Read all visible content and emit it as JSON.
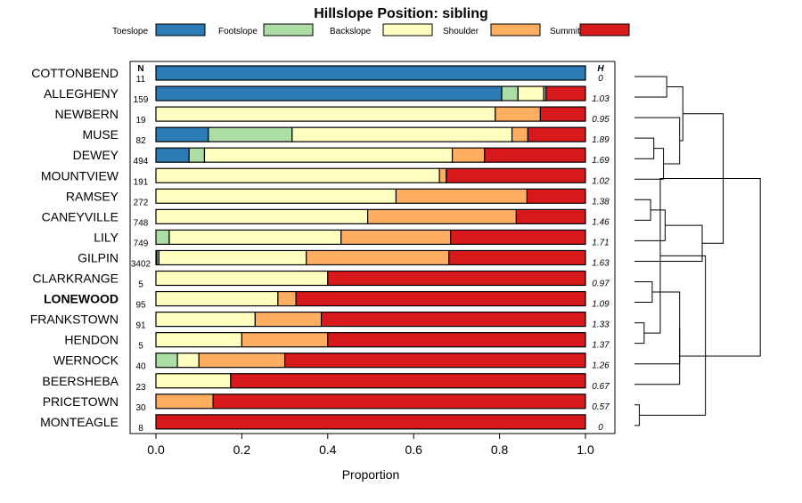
{
  "chart_data": {
    "type": "bar",
    "stacked": true,
    "orientation": "horizontal",
    "title": "Hillslope Position: sibling",
    "xlabel": "Proportion",
    "ylabel": "",
    "xlim": [
      0,
      1
    ],
    "xticks": [
      "0.0",
      "0.2",
      "0.4",
      "0.6",
      "0.8",
      "1.0"
    ],
    "xtick_values": [
      0,
      0.2,
      0.4,
      0.6,
      0.8,
      1.0
    ],
    "n_header": "N",
    "h_header": "H",
    "highlight": "LONEWOOD",
    "legend": [
      {
        "name": "Toeslope",
        "color": "#2c7bb6"
      },
      {
        "name": "Footslope",
        "color": "#abdda4"
      },
      {
        "name": "Backslope",
        "color": "#ffffbf"
      },
      {
        "name": "Shoulder",
        "color": "#fdae61"
      },
      {
        "name": "Summit",
        "color": "#d7191c"
      }
    ],
    "rows": [
      {
        "name": "COTTONBEND",
        "n": "11",
        "h": "0",
        "values": [
          1.0,
          0,
          0,
          0,
          0
        ]
      },
      {
        "name": "ALLEGHENY",
        "n": "159",
        "h": "1.03",
        "values": [
          0.805,
          0.038,
          0.06,
          0.005,
          0.092
        ]
      },
      {
        "name": "NEWBERN",
        "n": "19",
        "h": "0.95",
        "values": [
          0,
          0,
          0.79,
          0.105,
          0.105
        ]
      },
      {
        "name": "MUSE",
        "n": "82",
        "h": "1.89",
        "values": [
          0.122,
          0.195,
          0.512,
          0.037,
          0.134
        ]
      },
      {
        "name": "DEWEY",
        "n": "494",
        "h": "1.69",
        "values": [
          0.077,
          0.036,
          0.577,
          0.075,
          0.235
        ]
      },
      {
        "name": "MOUNTVIEW",
        "n": "191",
        "h": "1.02",
        "values": [
          0,
          0,
          0.66,
          0.016,
          0.324
        ]
      },
      {
        "name": "RAMSEY",
        "n": "272",
        "h": "1.38",
        "values": [
          0,
          0,
          0.559,
          0.305,
          0.136
        ]
      },
      {
        "name": "CANEYVILLE",
        "n": "748",
        "h": "1.46",
        "values": [
          0,
          0,
          0.493,
          0.346,
          0.161
        ]
      },
      {
        "name": "LILY",
        "n": "749",
        "h": "1.71",
        "values": [
          0,
          0.031,
          0.4,
          0.255,
          0.314
        ]
      },
      {
        "name": "GILPIN",
        "n": "3402",
        "h": "1.63",
        "values": [
          0.002,
          0.005,
          0.343,
          0.332,
          0.318
        ]
      },
      {
        "name": "CLARKRANGE",
        "n": "5",
        "h": "0.97",
        "values": [
          0,
          0,
          0.4,
          0,
          0.6
        ]
      },
      {
        "name": "LONEWOOD",
        "n": "95",
        "h": "1.09",
        "values": [
          0,
          0,
          0.284,
          0.042,
          0.674
        ]
      },
      {
        "name": "FRANKSTOWN",
        "n": "91",
        "h": "1.33",
        "values": [
          0,
          0,
          0.231,
          0.154,
          0.615
        ]
      },
      {
        "name": "HENDON",
        "n": "5",
        "h": "1.37",
        "values": [
          0,
          0,
          0.2,
          0.2,
          0.6
        ]
      },
      {
        "name": "WERNOCK",
        "n": "40",
        "h": "1.26",
        "values": [
          0,
          0.05,
          0.05,
          0.2,
          0.7
        ]
      },
      {
        "name": "BEERSHEBA",
        "n": "23",
        "h": "0.67",
        "values": [
          0,
          0,
          0.174,
          0,
          0.826
        ]
      },
      {
        "name": "PRICETOWN",
        "n": "30",
        "h": "0.57",
        "values": [
          0,
          0,
          0,
          0.133,
          0.867
        ]
      },
      {
        "name": "MONTEAGLE",
        "n": "8",
        "h": "0",
        "values": [
          0,
          0,
          0,
          0,
          1.0
        ]
      }
    ],
    "dendrogram": {
      "merges": [
        [
          0,
          1,
          0.2
        ],
        [
          3,
          4,
          0.12
        ],
        [
          19,
          5,
          0.18
        ],
        [
          2,
          20,
          0.28
        ],
        [
          21,
          18,
          0.3
        ],
        [
          6,
          7,
          0.1
        ],
        [
          23,
          8,
          0.19
        ],
        [
          24,
          9,
          0.42
        ],
        [
          22,
          25,
          0.55
        ],
        [
          12,
          13,
          0.06
        ],
        [
          10,
          11,
          0.11
        ],
        [
          27,
          26,
          0.16
        ],
        [
          28,
          14,
          0.28
        ],
        [
          16,
          17,
          0.03
        ],
        [
          15,
          30,
          0.28
        ],
        [
          29,
          31,
          0.44
        ],
        [
          26,
          32,
          0.78
        ]
      ]
    }
  }
}
